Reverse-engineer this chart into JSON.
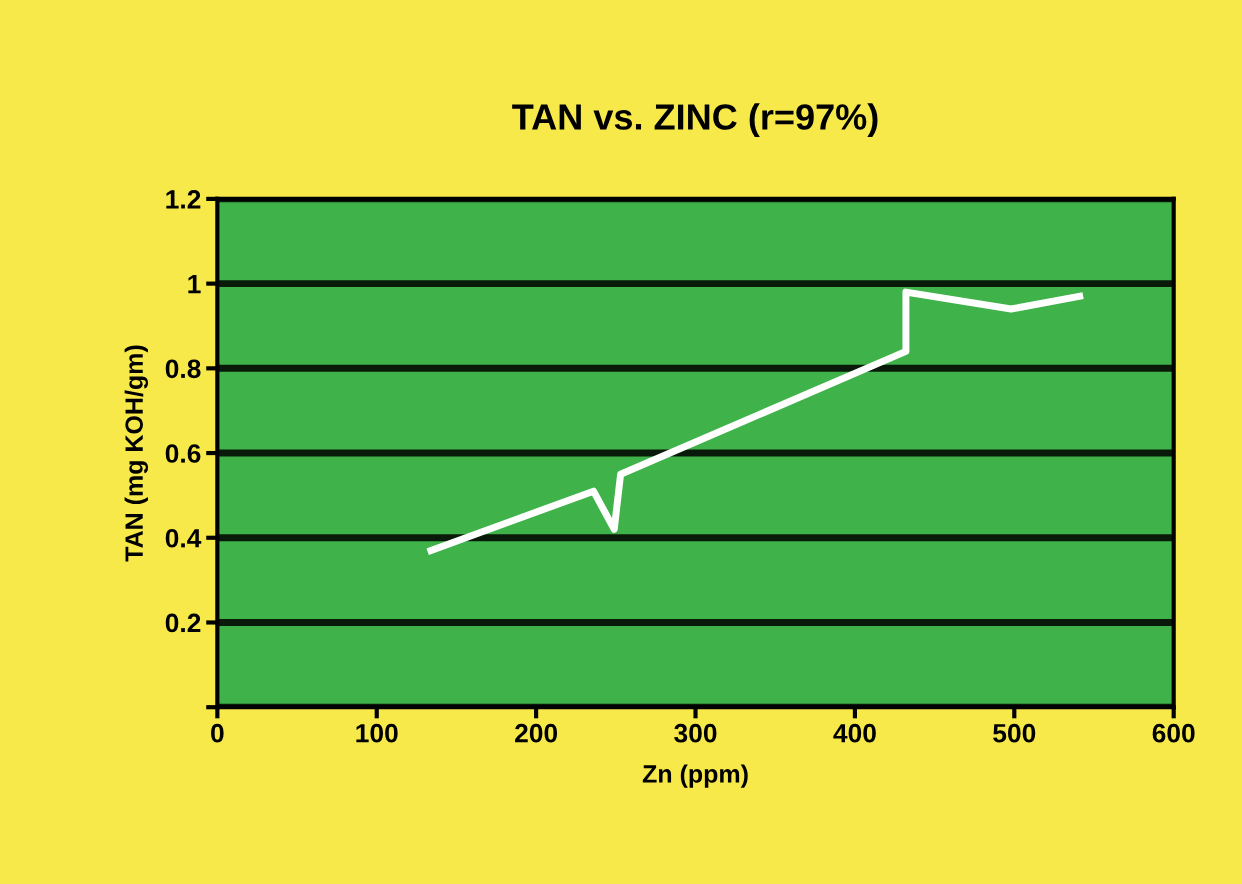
{
  "chart_data": {
    "type": "line",
    "title": "TAN vs. ZINC (r=97%)",
    "xlabel": "Zn (ppm)",
    "ylabel": "TAN (mg KOH/gm)",
    "series": [
      {
        "color": "#ffffff",
        "x": [
          134,
          236,
          249,
          253,
          432,
          432,
          498,
          541
        ],
        "values": [
          0.37,
          0.51,
          0.42,
          0.55,
          0.84,
          0.98,
          0.94,
          0.97
        ]
      }
    ],
    "xlim": [
      0,
      600
    ],
    "xticks": [
      0,
      100,
      200,
      300,
      400,
      500,
      600
    ],
    "ylim": [
      0,
      1.2
    ],
    "yticks": [
      {
        "value": 0,
        "label": null
      },
      0.2,
      0.4,
      0.6,
      0.8,
      1,
      1.2
    ],
    "grid": "y",
    "marker": "none",
    "line_style": "solid"
  }
}
